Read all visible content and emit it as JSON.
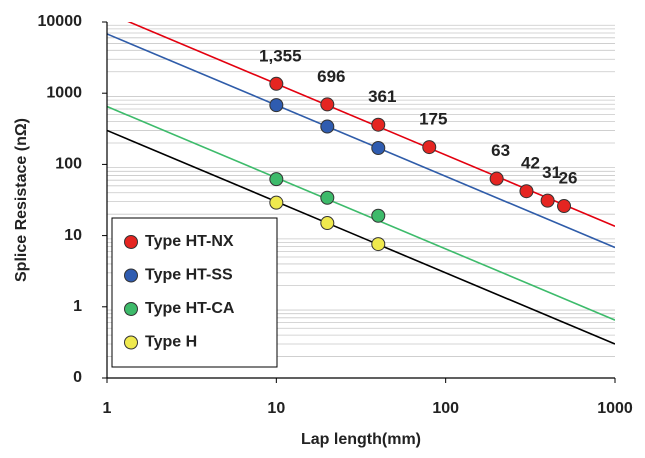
{
  "chart_data": {
    "type": "scatter",
    "x_label": "Lap length(mm)",
    "y_label": "Splice Resistace (nΩ)",
    "xlim": [
      1,
      1000
    ],
    "xticks": [
      1,
      10,
      100,
      1000
    ],
    "xlog": true,
    "ylim": [
      0.1,
      10000
    ],
    "yticks": [
      {
        "value": 0.1,
        "label": "0"
      },
      1,
      10,
      100,
      1000,
      10000
    ],
    "ylog": true,
    "grid": true,
    "minor_grid": true,
    "legend": "lower left",
    "series": [
      {
        "name": "Type HT-NX",
        "color": "#e52521",
        "line_color": "#e3000f",
        "x": [
          10,
          20,
          40,
          80,
          200,
          300,
          400,
          500
        ],
        "values": [
          1355,
          696,
          361,
          175,
          63,
          42,
          31,
          26
        ],
        "value_labels": [
          "1,355",
          "696",
          "361",
          "175",
          "63",
          "42",
          "31",
          "26"
        ],
        "fit_x": [
          1,
          1000
        ],
        "fit_values": [
          13550,
          13.55
        ]
      },
      {
        "name": "Type HT-SS",
        "color": "#2f5cb0",
        "line_color": "#2f5ca9",
        "x": [
          10,
          20,
          40
        ],
        "values": [
          680,
          340,
          170
        ],
        "fit_x": [
          1,
          1000
        ],
        "fit_values": [
          6800,
          6.8
        ]
      },
      {
        "name": "Type HT-CA",
        "color": "#3dba6a",
        "line_color": "#3dbb6b",
        "x": [
          10,
          20,
          40
        ],
        "values": [
          62,
          34,
          19
        ],
        "fit_x": [
          1,
          1000
        ],
        "fit_values": [
          650,
          0.65
        ]
      },
      {
        "name": "Type H",
        "color": "#efe94e",
        "line_color": "#000000",
        "x": [
          10,
          20,
          40
        ],
        "values": [
          29,
          15,
          7.6
        ],
        "fit_x": [
          1,
          1000
        ],
        "fit_values": [
          300,
          0.3
        ]
      }
    ]
  }
}
